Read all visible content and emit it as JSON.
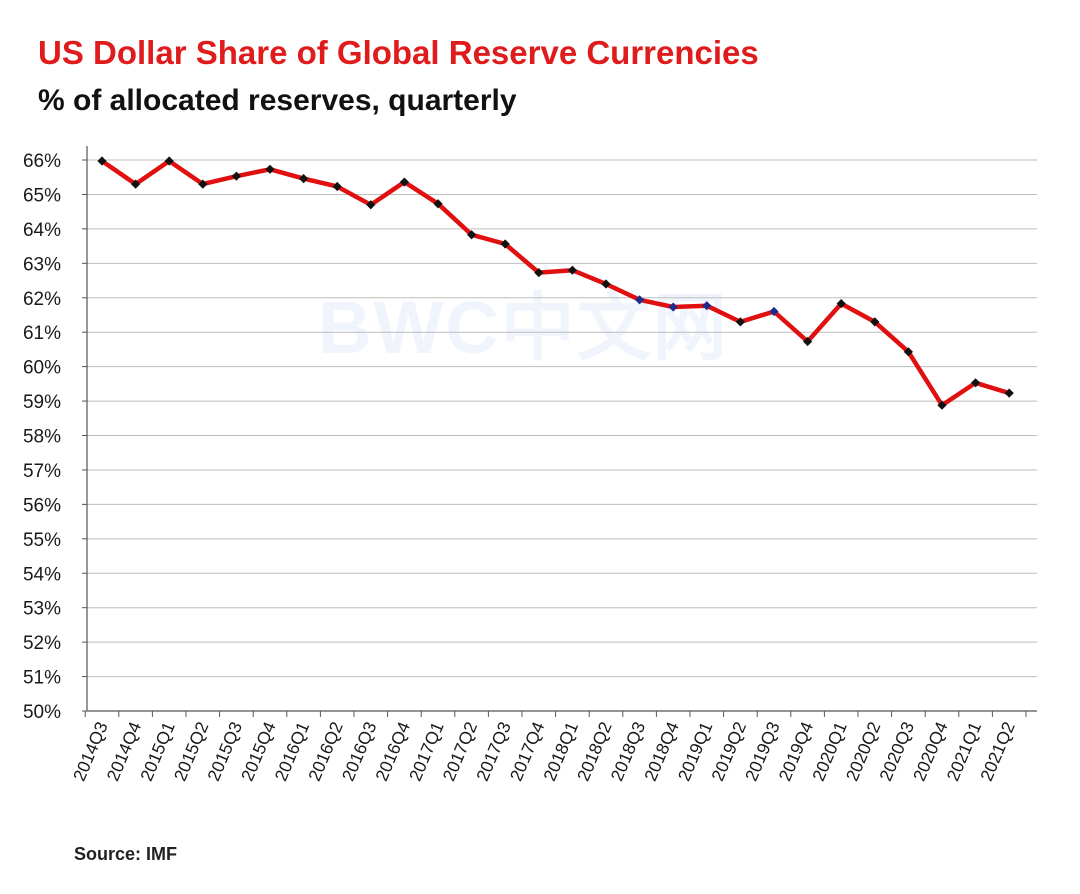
{
  "chart_data": {
    "type": "line",
    "title": "US Dollar Share of Global Reserve Currencies",
    "subtitle": "% of allocated reserves, quarterly",
    "xlabel": "",
    "ylabel": "",
    "categories": [
      "2014Q3",
      "2014Q4",
      "2015Q1",
      "2015Q2",
      "2015Q3",
      "2015Q4",
      "2016Q1",
      "2016Q2",
      "2016Q3",
      "2016Q4",
      "2017Q1",
      "2017Q2",
      "2017Q3",
      "2017Q4",
      "2018Q1",
      "2018Q2",
      "2018Q3",
      "2018Q4",
      "2019Q1",
      "2019Q2",
      "2019Q3",
      "2019Q4",
      "2020Q1",
      "2020Q2",
      "2020Q3",
      "2020Q4",
      "2021Q1",
      "2021Q2"
    ],
    "series": [
      {
        "values": [
          65.97,
          65.3,
          65.97,
          65.3,
          65.53,
          65.73,
          65.46,
          65.23,
          64.7,
          65.36,
          64.73,
          63.83,
          63.56,
          62.73,
          62.8,
          62.4,
          61.94,
          61.73,
          61.77,
          61.3,
          61.6,
          60.73,
          61.83,
          61.3,
          60.43,
          58.88,
          59.53,
          59.23
        ],
        "line_color": "#e01010",
        "marker_color": "#111111",
        "highlight_marker_color": "#1f2a8a",
        "highlight_indices": [
          16,
          17,
          18,
          20
        ]
      }
    ],
    "yticks": [
      "50%",
      "51%",
      "52%",
      "53%",
      "54%",
      "55%",
      "56%",
      "57%",
      "58%",
      "59%",
      "60%",
      "61%",
      "62%",
      "63%",
      "64%",
      "65%",
      "66%"
    ],
    "ylim": [
      50,
      66
    ],
    "grid": "horizontal",
    "legend": "none"
  },
  "source": "Source: IMF",
  "watermark": "BWC中文网"
}
